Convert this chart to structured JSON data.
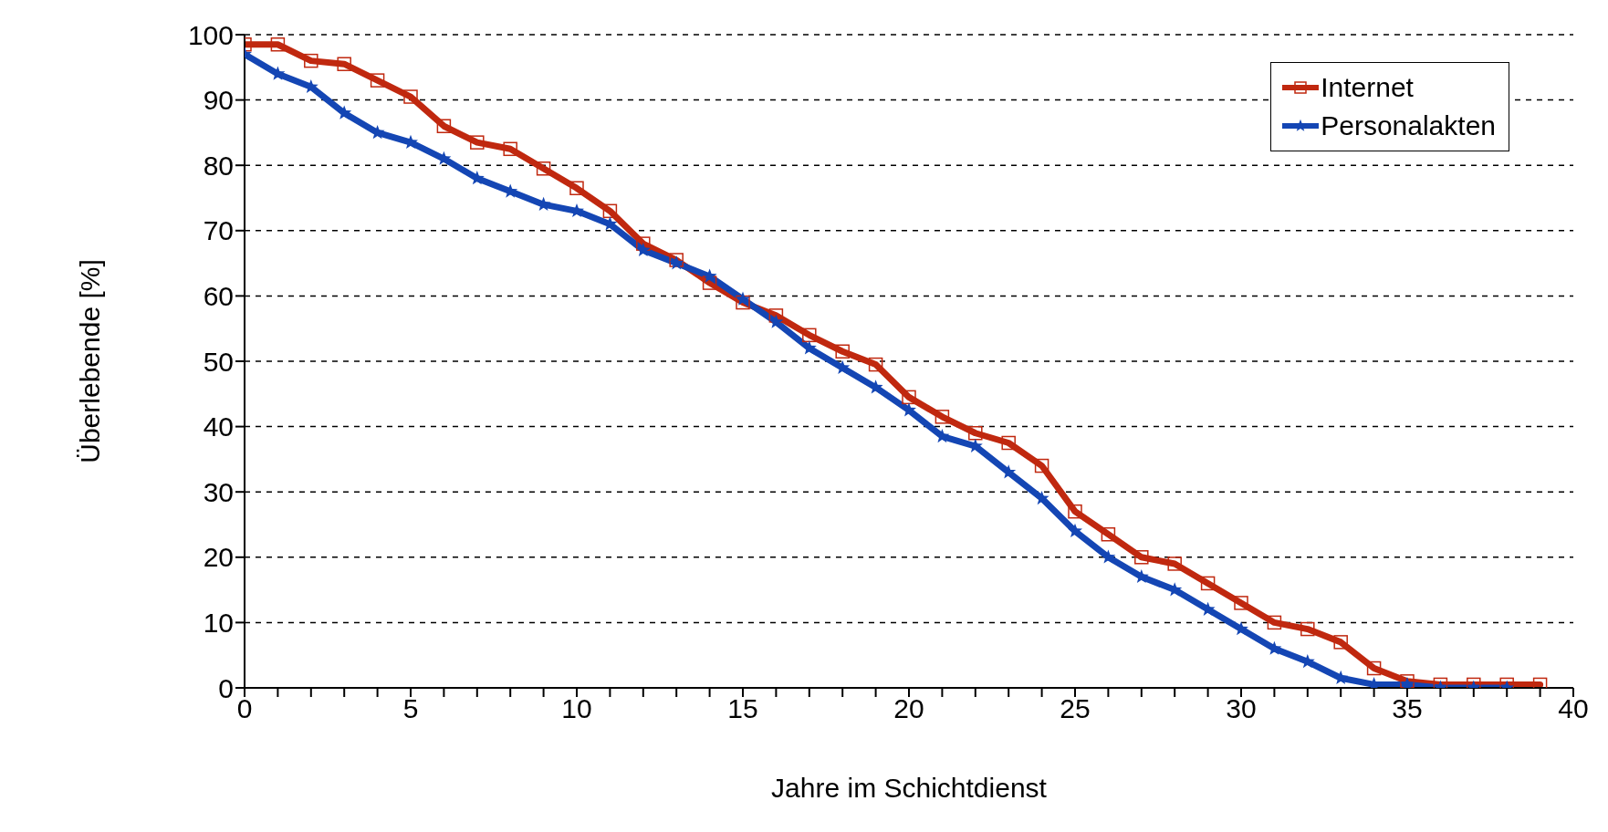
{
  "chart_data": {
    "type": "line",
    "xlabel": "Jahre im Schichtdienst",
    "ylabel": "Überlebende [%]",
    "x": [
      0,
      1,
      2,
      3,
      4,
      5,
      6,
      7,
      8,
      9,
      10,
      11,
      12,
      13,
      14,
      15,
      16,
      17,
      18,
      19,
      20,
      21,
      22,
      23,
      24,
      25,
      26,
      27,
      28,
      29,
      30,
      31,
      32,
      33,
      34,
      35,
      36,
      37,
      38,
      39
    ],
    "series": [
      {
        "name": "Internet",
        "color": "#c0280f",
        "marker": "square",
        "values": [
          98.5,
          98.5,
          96,
          95.5,
          93,
          90.5,
          86,
          83.5,
          82.5,
          79.5,
          76.5,
          73,
          68,
          65.5,
          62,
          59,
          57,
          54,
          51.5,
          49.5,
          44.5,
          41.5,
          39,
          37.5,
          34,
          27,
          23.5,
          20,
          19,
          16,
          13,
          10,
          9,
          7,
          3,
          1,
          0.5,
          0.5,
          0.5,
          0.5
        ]
      },
      {
        "name": "Personalakten",
        "color": "#1446b4",
        "marker": "star",
        "values": [
          97,
          94,
          92,
          88,
          85,
          83.5,
          81,
          78,
          76,
          74,
          73,
          71,
          67,
          65,
          63,
          59.5,
          56,
          52,
          49,
          46,
          42.5,
          38.5,
          37,
          33,
          29,
          24,
          20,
          17,
          15,
          12,
          9,
          6,
          4,
          1.5,
          0.5,
          0.5,
          0,
          0,
          0,
          null
        ]
      }
    ],
    "xlim": [
      0,
      40
    ],
    "xticks": [
      0,
      {
        "value": 1,
        "label": null
      },
      {
        "value": 2,
        "label": null
      },
      {
        "value": 3,
        "label": null
      },
      {
        "value": 4,
        "label": null
      },
      5,
      {
        "value": 6,
        "label": null
      },
      {
        "value": 7,
        "label": null
      },
      {
        "value": 8,
        "label": null
      },
      {
        "value": 9,
        "label": null
      },
      10,
      {
        "value": 11,
        "label": null
      },
      {
        "value": 12,
        "label": null
      },
      {
        "value": 13,
        "label": null
      },
      {
        "value": 14,
        "label": null
      },
      15,
      {
        "value": 16,
        "label": null
      },
      {
        "value": 17,
        "label": null
      },
      {
        "value": 18,
        "label": null
      },
      {
        "value": 19,
        "label": null
      },
      20,
      {
        "value": 21,
        "label": null
      },
      {
        "value": 22,
        "label": null
      },
      {
        "value": 23,
        "label": null
      },
      {
        "value": 24,
        "label": null
      },
      25,
      {
        "value": 26,
        "label": null
      },
      {
        "value": 27,
        "label": null
      },
      {
        "value": 28,
        "label": null
      },
      {
        "value": 29,
        "label": null
      },
      30,
      {
        "value": 31,
        "label": null
      },
      {
        "value": 32,
        "label": null
      },
      {
        "value": 33,
        "label": null
      },
      {
        "value": 34,
        "label": null
      },
      35,
      {
        "value": 36,
        "label": null
      },
      {
        "value": 37,
        "label": null
      },
      {
        "value": 38,
        "label": null
      },
      {
        "value": 39,
        "label": null
      },
      40
    ],
    "ylim": [
      0,
      100
    ],
    "yticks": [
      0,
      10,
      20,
      30,
      40,
      50,
      60,
      70,
      80,
      90,
      100
    ],
    "grid": "y",
    "legend": "top right",
    "line_style": "solid"
  }
}
